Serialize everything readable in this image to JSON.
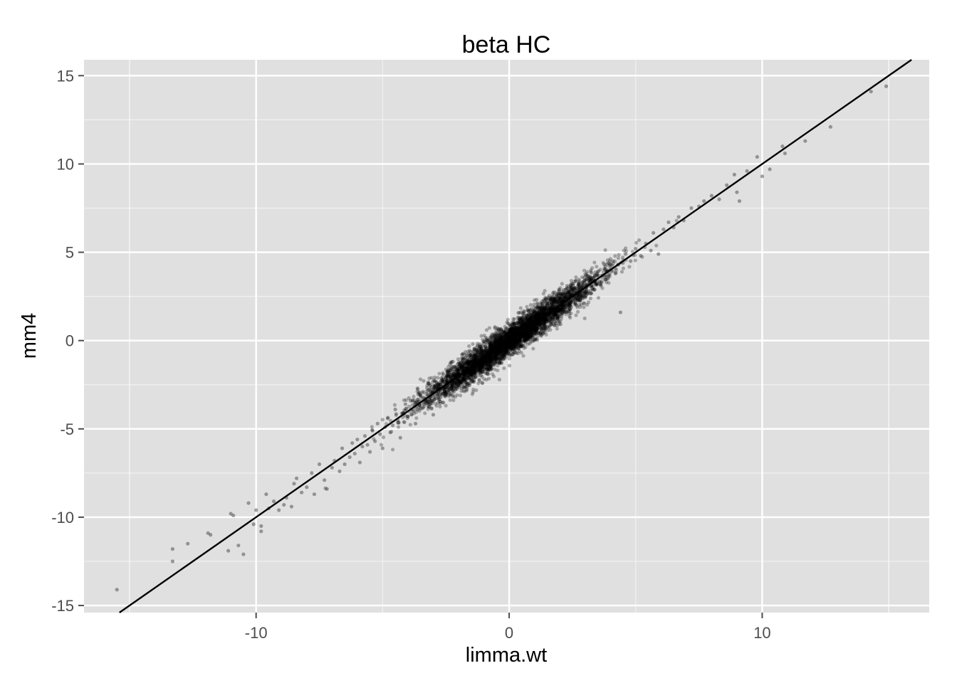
{
  "chart_data": {
    "type": "scatter",
    "title": "beta HC",
    "xlabel": "limma.wt",
    "ylabel": "mm4",
    "xlim": [
      -16.8,
      16.6
    ],
    "ylim": [
      -15.4,
      15.9
    ],
    "x_ticks": [
      -10,
      0,
      10
    ],
    "y_ticks": [
      15,
      10,
      5,
      0,
      -5,
      -10,
      -15
    ],
    "grid": true,
    "panel_background": "#e0e0e0",
    "grid_color": "#ffffff",
    "point_color": "#000000",
    "line": {
      "type": "identity",
      "slope": 1,
      "intercept": 0,
      "color": "#000000"
    },
    "points": [
      [
        -15.5,
        -14.1
      ],
      [
        -13.3,
        -11.8
      ],
      [
        -13.3,
        -12.5
      ],
      [
        -12.7,
        -11.5
      ],
      [
        -11.9,
        -10.9
      ],
      [
        -11.8,
        -11.0
      ],
      [
        -11.1,
        -11.9
      ],
      [
        -11.0,
        -9.8
      ],
      [
        -10.9,
        -9.9
      ],
      [
        -10.7,
        -11.6
      ],
      [
        -10.5,
        -12.1
      ],
      [
        -10.3,
        -9.2
      ],
      [
        -10.1,
        -10.4
      ],
      [
        -10.0,
        -9.6
      ],
      [
        -9.8,
        -10.8
      ],
      [
        -9.8,
        -10.5
      ],
      [
        -9.6,
        -8.7
      ],
      [
        -9.5,
        -9.5
      ],
      [
        -9.3,
        -9.1
      ],
      [
        -9.1,
        -9.6
      ],
      [
        -8.9,
        -9.3
      ],
      [
        -8.8,
        -8.9
      ],
      [
        -8.6,
        -9.4
      ],
      [
        -8.5,
        -8.1
      ],
      [
        -8.4,
        -7.8
      ],
      [
        -8.2,
        -8.6
      ],
      [
        -8.0,
        -8.3
      ],
      [
        -7.8,
        -7.5
      ],
      [
        -7.7,
        -8.7
      ],
      [
        -7.5,
        -7.0
      ],
      [
        -7.3,
        -7.9
      ],
      [
        -7.2,
        -8.4
      ],
      [
        -7.0,
        -7.2
      ],
      [
        -6.9,
        -6.8
      ],
      [
        -6.7,
        -7.4
      ],
      [
        -6.6,
        -6.1
      ],
      [
        -6.5,
        -7.0
      ],
      [
        -6.3,
        -6.6
      ],
      [
        -6.2,
        -5.8
      ],
      [
        -6.1,
        -6.4
      ],
      [
        -6.0,
        -5.6
      ],
      [
        -5.9,
        -6.9
      ],
      [
        -5.8,
        -6.0
      ],
      [
        -5.7,
        -5.4
      ],
      [
        -5.6,
        -5.9
      ],
      [
        -5.5,
        -6.3
      ],
      [
        -5.4,
        -5.1
      ],
      [
        -5.3,
        -5.7
      ],
      [
        -5.2,
        -4.7
      ],
      [
        -5.1,
        -5.3
      ],
      [
        -5.0,
        -6.1
      ],
      [
        -4.9,
        -4.9
      ],
      [
        -4.8,
        -4.4
      ],
      [
        -4.7,
        -5.2
      ],
      [
        -4.6,
        -4.8
      ],
      [
        -4.5,
        -3.9
      ],
      [
        -4.4,
        -4.5
      ],
      [
        -4.3,
        -5.5
      ],
      [
        -4.2,
        -4.1
      ],
      [
        -4.1,
        -3.6
      ],
      [
        -4.0,
        -4.3
      ],
      [
        -3.9,
        -3.4
      ],
      [
        -3.8,
        -4.0
      ],
      [
        -3.7,
        -4.7
      ],
      [
        -3.6,
        -3.5
      ],
      [
        -3.5,
        -3.1
      ],
      [
        -3.4,
        -3.8
      ],
      [
        -3.3,
        -3.3
      ],
      [
        -3.2,
        -2.8
      ],
      [
        -3.1,
        -3.6
      ],
      [
        -3.0,
        -4.2
      ],
      [
        -2.9,
        -2.9
      ],
      [
        -2.8,
        -2.5
      ],
      [
        -2.7,
        -3.2
      ],
      [
        -2.6,
        -2.6
      ],
      [
        -2.5,
        -2.1
      ],
      [
        -2.4,
        -2.9
      ],
      [
        -2.3,
        -2.3
      ],
      [
        -2.2,
        -1.9
      ],
      [
        -2.1,
        -2.6
      ],
      [
        -2.0,
        -2.0
      ],
      [
        -1.9,
        -1.5
      ],
      [
        -1.8,
        -2.2
      ],
      [
        -1.7,
        -1.7
      ],
      [
        -1.6,
        -1.3
      ],
      [
        -1.5,
        -1.9
      ],
      [
        -1.4,
        -1.4
      ],
      [
        -1.3,
        -0.9
      ],
      [
        -1.2,
        -1.6
      ],
      [
        -1.1,
        -1.1
      ],
      [
        -1.0,
        -0.6
      ],
      [
        -0.9,
        -1.2
      ],
      [
        -0.8,
        -0.8
      ],
      [
        -0.7,
        -0.3
      ],
      [
        -0.6,
        -0.9
      ],
      [
        -0.5,
        -0.5
      ],
      [
        -0.4,
        0.1
      ],
      [
        -0.3,
        -0.6
      ],
      [
        -0.2,
        -0.2
      ],
      [
        -0.1,
        0.3
      ],
      [
        0.0,
        -0.1
      ],
      [
        0.1,
        0.2
      ],
      [
        0.2,
        0.6
      ],
      [
        0.3,
        0.1
      ],
      [
        0.4,
        0.4
      ],
      [
        0.5,
        0.9
      ],
      [
        0.6,
        0.3
      ],
      [
        0.7,
        0.7
      ],
      [
        0.8,
        1.2
      ],
      [
        0.9,
        0.6
      ],
      [
        1.0,
        1.0
      ],
      [
        1.1,
        1.5
      ],
      [
        1.2,
        0.9
      ],
      [
        1.3,
        1.3
      ],
      [
        1.4,
        1.8
      ],
      [
        1.5,
        1.2
      ],
      [
        1.6,
        1.6
      ],
      [
        1.7,
        2.1
      ],
      [
        1.8,
        1.5
      ],
      [
        1.9,
        1.9
      ],
      [
        2.0,
        2.4
      ],
      [
        2.1,
        1.8
      ],
      [
        2.2,
        2.2
      ],
      [
        2.3,
        2.7
      ],
      [
        2.4,
        2.1
      ],
      [
        2.5,
        2.5
      ],
      [
        2.6,
        3.0
      ],
      [
        2.7,
        2.3
      ],
      [
        2.8,
        2.8
      ],
      [
        2.9,
        3.3
      ],
      [
        3.0,
        2.7
      ],
      [
        3.1,
        3.1
      ],
      [
        3.2,
        3.6
      ],
      [
        3.3,
        2.9
      ],
      [
        3.4,
        3.4
      ],
      [
        3.5,
        3.9
      ],
      [
        3.6,
        3.2
      ],
      [
        3.7,
        3.7
      ],
      [
        3.8,
        4.2
      ],
      [
        3.9,
        3.5
      ],
      [
        4.0,
        4.0
      ],
      [
        4.1,
        4.5
      ],
      [
        4.2,
        3.8
      ],
      [
        4.3,
        4.3
      ],
      [
        4.4,
        1.6
      ],
      [
        4.5,
        4.4
      ],
      [
        4.6,
        4.9
      ],
      [
        4.8,
        4.5
      ],
      [
        5.0,
        5.2
      ],
      [
        5.2,
        4.8
      ],
      [
        5.4,
        5.5
      ],
      [
        5.6,
        5.1
      ],
      [
        5.7,
        6.1
      ],
      [
        5.9,
        4.9
      ],
      [
        6.1,
        6.3
      ],
      [
        6.3,
        6.7
      ],
      [
        6.5,
        6.4
      ],
      [
        6.7,
        7.0
      ],
      [
        6.9,
        6.8
      ],
      [
        7.2,
        7.5
      ],
      [
        7.5,
        7.6
      ],
      [
        7.7,
        7.9
      ],
      [
        8.0,
        8.2
      ],
      [
        8.3,
        8.0
      ],
      [
        8.6,
        8.8
      ],
      [
        8.9,
        9.4
      ],
      [
        9.0,
        8.4
      ],
      [
        9.1,
        7.9
      ],
      [
        9.4,
        9.6
      ],
      [
        9.8,
        10.4
      ],
      [
        10.0,
        9.3
      ],
      [
        10.3,
        9.7
      ],
      [
        10.8,
        11.0
      ],
      [
        10.9,
        10.6
      ],
      [
        11.7,
        11.3
      ],
      [
        12.7,
        12.1
      ],
      [
        14.3,
        14.1
      ],
      [
        14.9,
        14.4
      ]
    ]
  }
}
